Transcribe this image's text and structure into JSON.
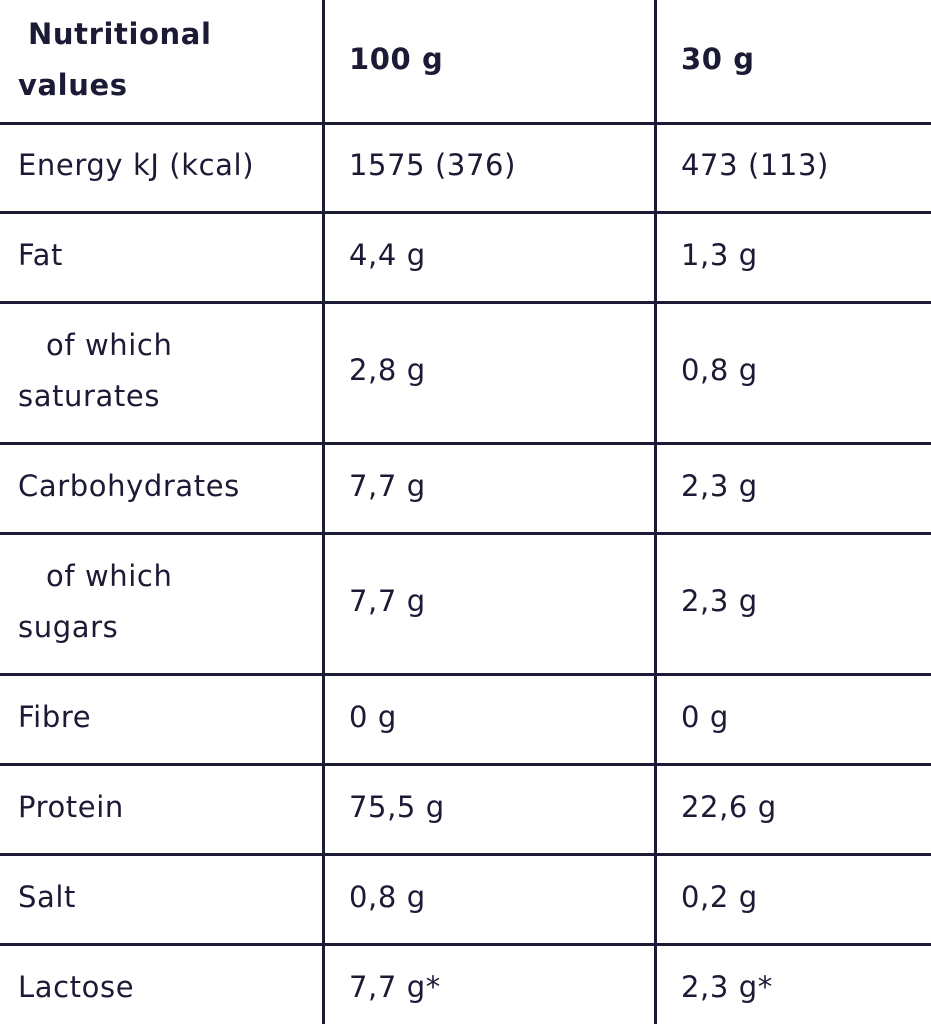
{
  "table": {
    "header": [
      "Nutritional values",
      "100 g",
      "30 g"
    ],
    "rows": [
      [
        "Energy kJ (kcal)",
        "1575 (376)",
        "473 (113)"
      ],
      [
        "Fat",
        "4,4 g",
        "1,3 g"
      ],
      [
        "of which saturates",
        "2,8 g",
        "0,8 g"
      ],
      [
        "Carbohydrates",
        "7,7 g",
        "2,3 g"
      ],
      [
        "of which sugars",
        "7,7 g",
        "2,3 g"
      ],
      [
        "Fibre",
        "0 g",
        "0 g"
      ],
      [
        "Protein",
        "75,5 g",
        "22,6 g"
      ],
      [
        "Salt",
        "0,8 g",
        "0,2 g"
      ],
      [
        "Lactose",
        "7,7 g*",
        "2,3 g*"
      ]
    ]
  }
}
